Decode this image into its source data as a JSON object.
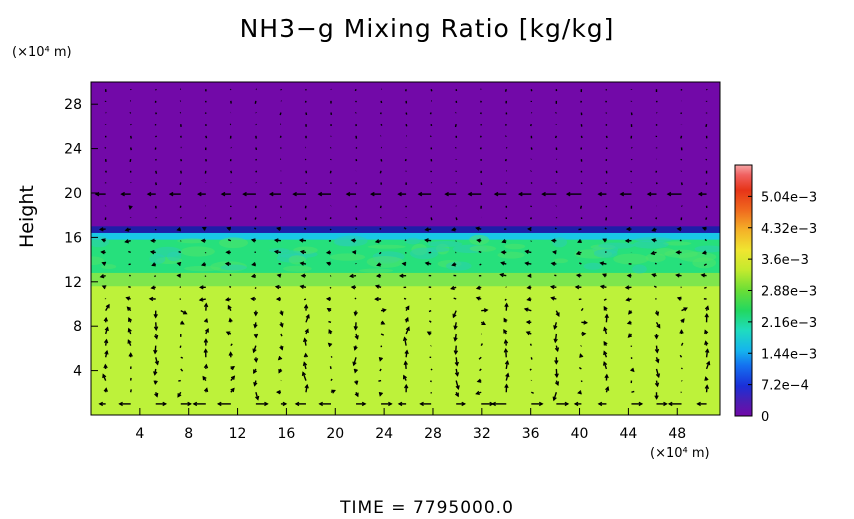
{
  "chart_data": {
    "type": "heatmap",
    "title": "NH3−g Mixing Ratio [kg/kg]",
    "ylabel": "Height",
    "y_unit": "(×10⁴ m)",
    "x_unit": "(×10⁴ m)",
    "xlim": [
      0,
      51.5
    ],
    "ylim": [
      0,
      30
    ],
    "x_ticks": [
      4,
      8,
      12,
      16,
      20,
      24,
      28,
      32,
      36,
      40,
      44,
      48
    ],
    "x_tick_labels": [
      "4",
      "8",
      "12",
      "16",
      "20",
      "24",
      "28",
      "32",
      "36",
      "40",
      "44",
      "48"
    ],
    "y_ticks": [
      4,
      8,
      12,
      16,
      20,
      24,
      28
    ],
    "y_tick_labels": [
      "4",
      "8",
      "12",
      "16",
      "20",
      "24",
      "28"
    ],
    "colorbar": {
      "min": 0,
      "max": 0.00576,
      "tick_values": [
        0,
        0.00072,
        0.00144,
        0.00216,
        0.00288,
        0.0036,
        0.00432,
        0.00504
      ],
      "tick_labels": [
        "0",
        "7.2e−4",
        "1.44e−3",
        "2.16e−3",
        "2.88e−3",
        "3.6e−3",
        "4.32e−3",
        "5.04e−3"
      ]
    },
    "field_regions": [
      {
        "y_range": [
          17,
          30
        ],
        "value": 0,
        "color": "#7209a8"
      },
      {
        "y_range": [
          16.4,
          17
        ],
        "value": 0.0007,
        "color": "#1e1ea8"
      },
      {
        "y_range": [
          15.8,
          16.4
        ],
        "value": 0.0015,
        "color": "#19c8e6"
      },
      {
        "y_range": [
          12.8,
          15.8
        ],
        "value": 0.0025,
        "color": "#26e07c"
      },
      {
        "y_range": [
          11.6,
          12.8
        ],
        "value": 0.0029,
        "color": "#7fe64c"
      },
      {
        "y_range": [
          0,
          11.6
        ],
        "value": 0.0033,
        "color": "#bdf23a"
      }
    ],
    "wind_vectors": "velocity arrows overlaid on the field: strong westward flow near height 20 and below 2, eddy circulation cells at heights 2–9"
  },
  "footer": {
    "time_label": "TIME  =  7795000.0"
  }
}
